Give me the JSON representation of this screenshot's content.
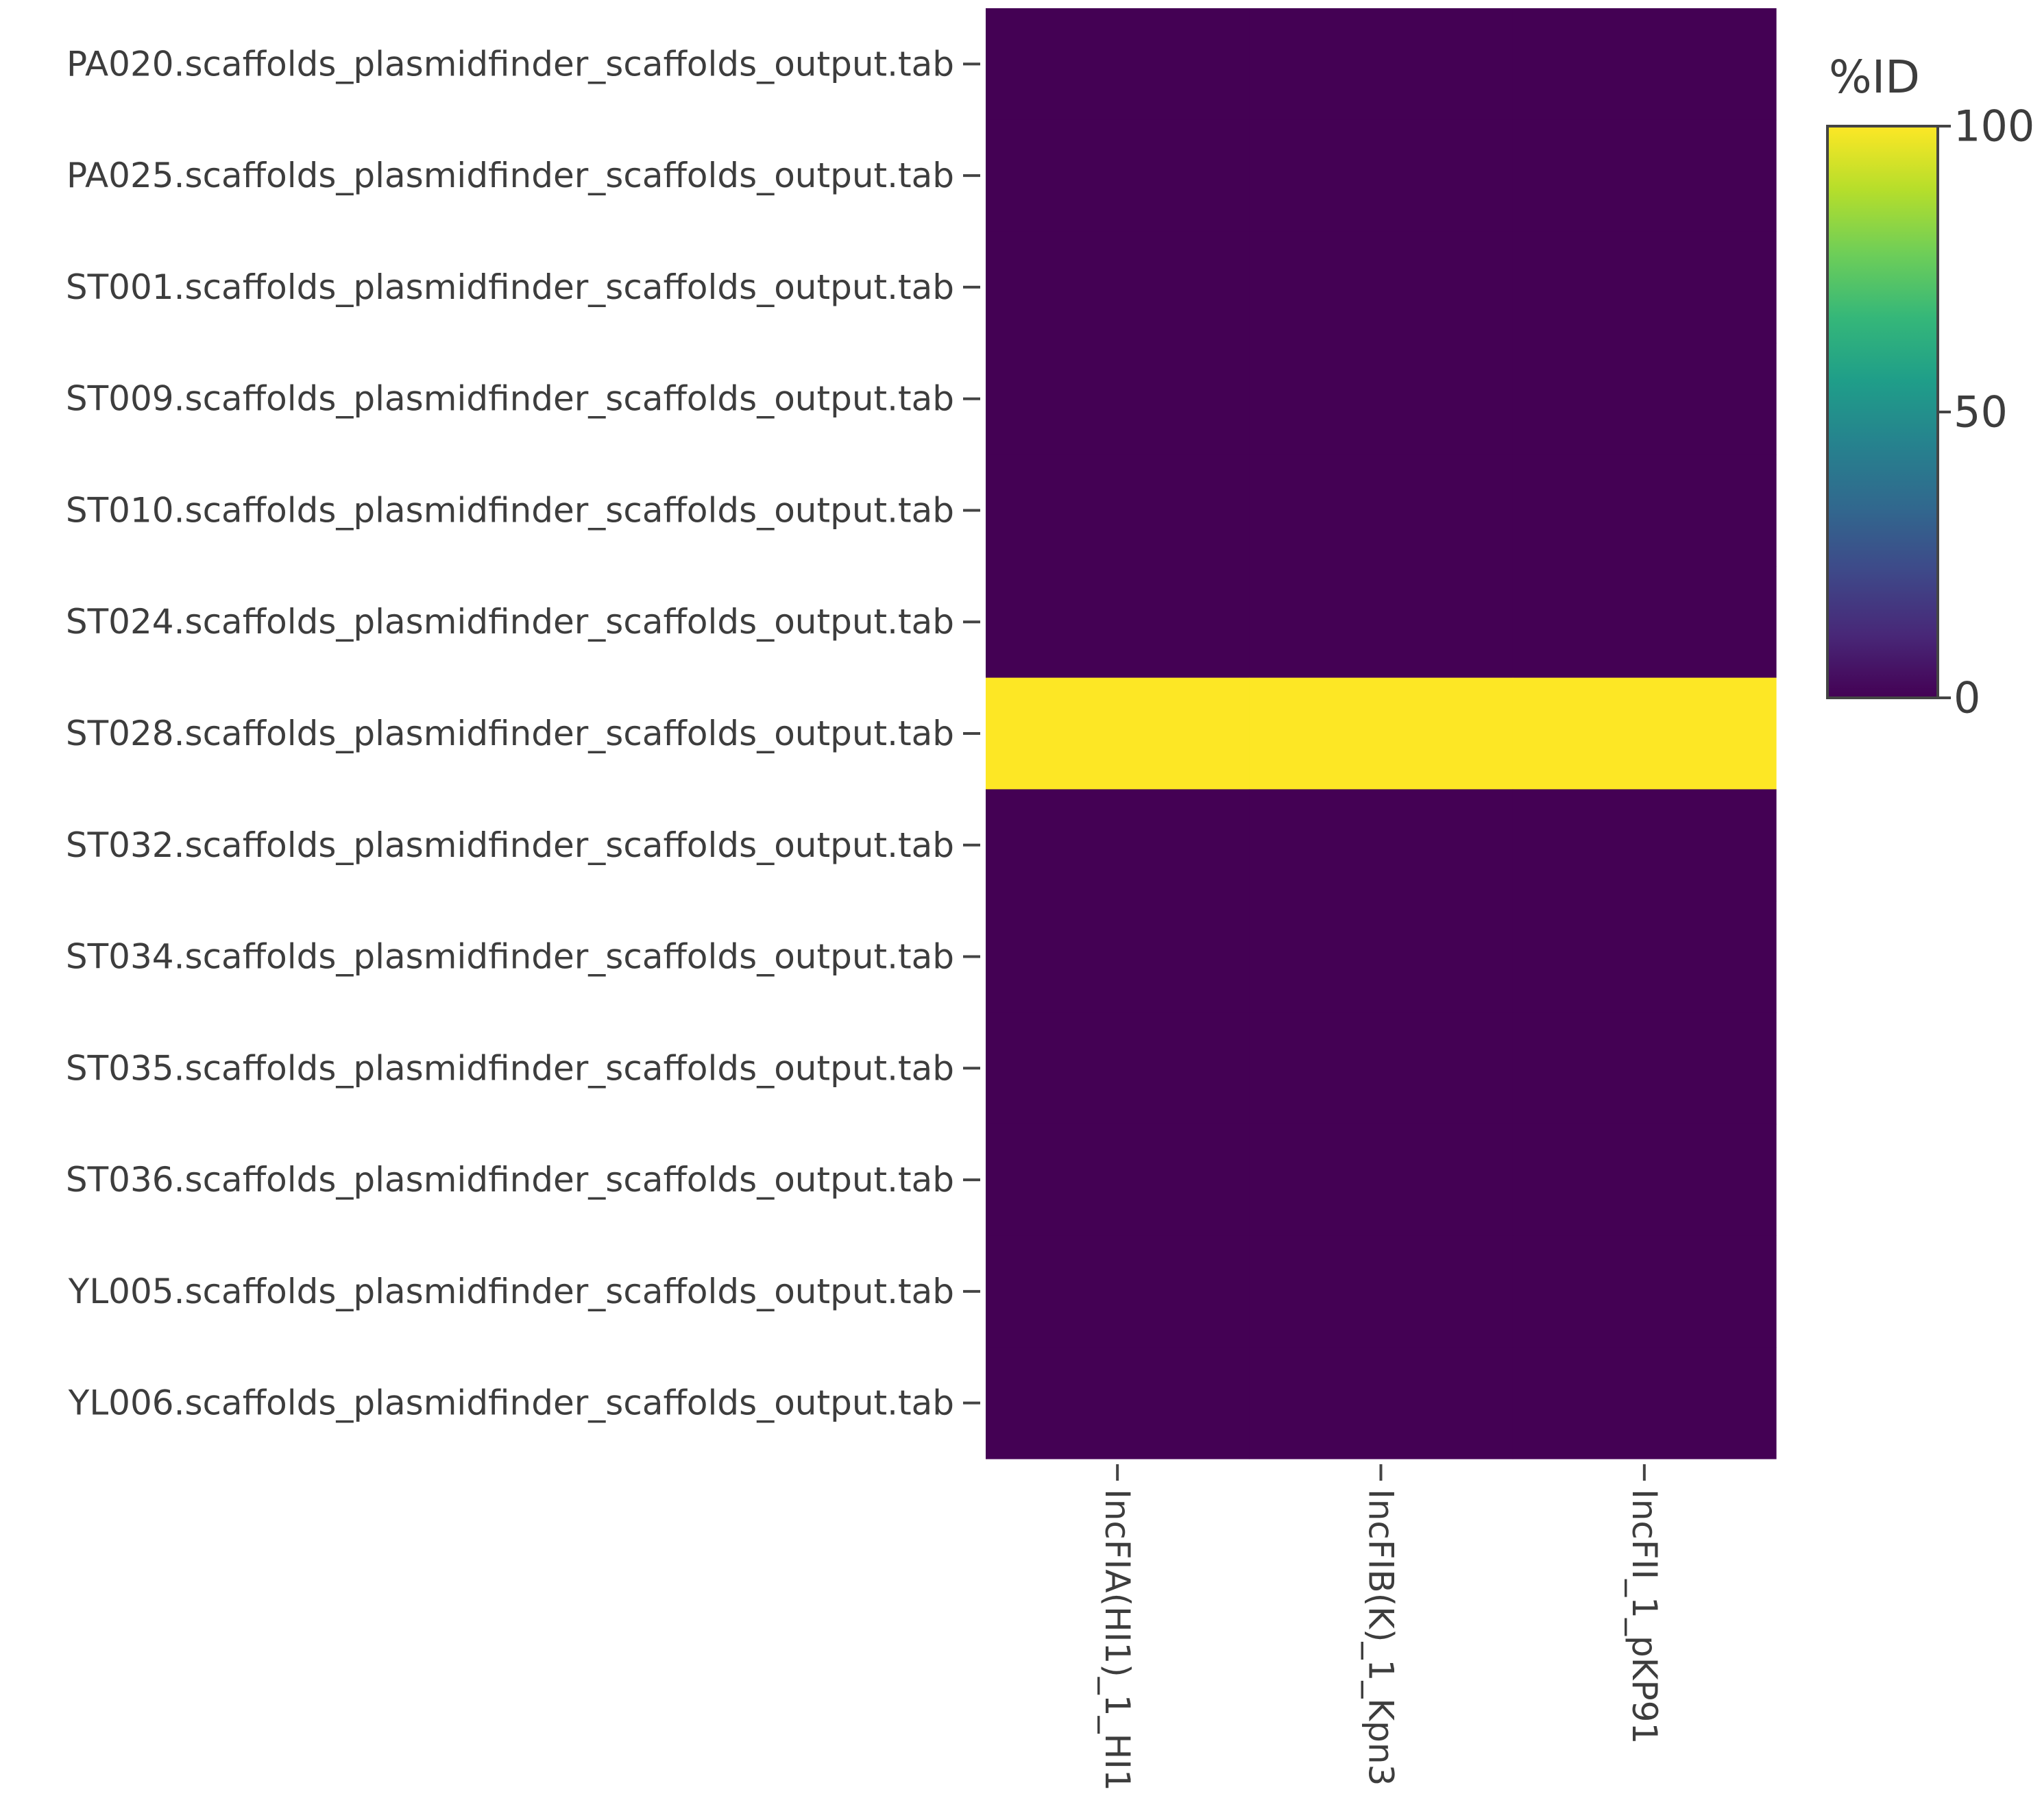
{
  "chart_data": {
    "type": "heatmap",
    "title": "",
    "xlabel": "",
    "ylabel": "",
    "x_categories": [
      "IncFIA(HI1)_1_HI1",
      "IncFIB(K)_1_Kpn3",
      "IncFII_1_pKP91"
    ],
    "y_categories": [
      "PA020.scaffolds_plasmidfinder_scaffolds_output.tab",
      "PA025.scaffolds_plasmidfinder_scaffolds_output.tab",
      "ST001.scaffolds_plasmidfinder_scaffolds_output.tab",
      "ST009.scaffolds_plasmidfinder_scaffolds_output.tab",
      "ST010.scaffolds_plasmidfinder_scaffolds_output.tab",
      "ST024.scaffolds_plasmidfinder_scaffolds_output.tab",
      "ST028.scaffolds_plasmidfinder_scaffolds_output.tab",
      "ST032.scaffolds_plasmidfinder_scaffolds_output.tab",
      "ST034.scaffolds_plasmidfinder_scaffolds_output.tab",
      "ST035.scaffolds_plasmidfinder_scaffolds_output.tab",
      "ST036.scaffolds_plasmidfinder_scaffolds_output.tab",
      "YL005.scaffolds_plasmidfinder_scaffolds_output.tab",
      "YL006.scaffolds_plasmidfinder_scaffolds_output.tab"
    ],
    "values": [
      [
        0,
        0,
        0
      ],
      [
        0,
        0,
        0
      ],
      [
        0,
        0,
        0
      ],
      [
        0,
        0,
        0
      ],
      [
        0,
        0,
        0
      ],
      [
        0,
        0,
        0
      ],
      [
        100,
        100,
        100
      ],
      [
        0,
        0,
        0
      ],
      [
        0,
        0,
        0
      ],
      [
        0,
        0,
        0
      ],
      [
        0,
        0,
        0
      ],
      [
        0,
        0,
        0
      ],
      [
        0,
        0,
        0
      ]
    ],
    "colorscale": "viridis",
    "colorbar": {
      "title": "%ID",
      "range": [
        0,
        100
      ],
      "ticks": [
        "0",
        "50",
        "100"
      ]
    },
    "grid": false
  }
}
